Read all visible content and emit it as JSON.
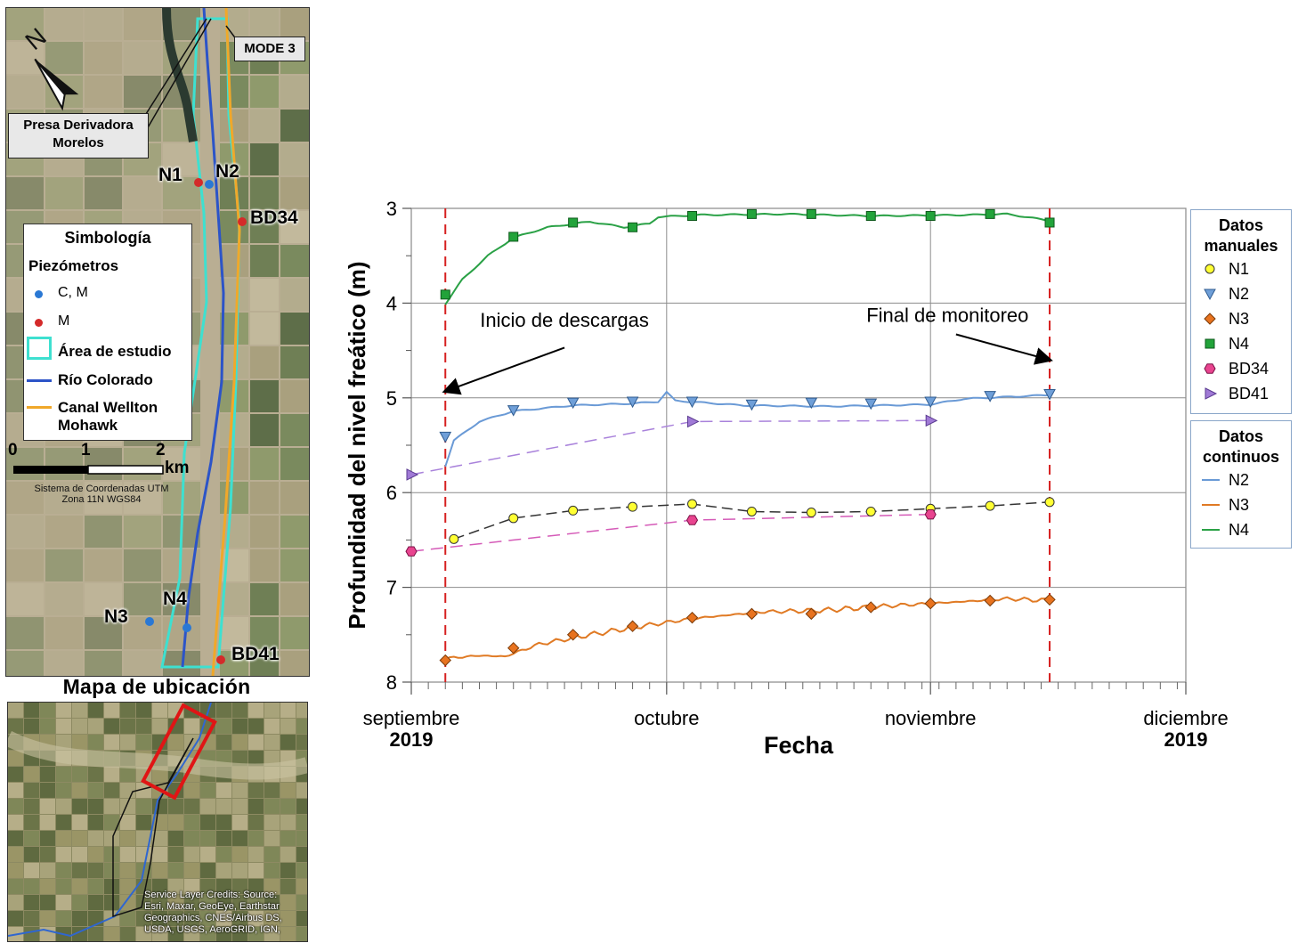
{
  "map": {
    "mode_label": "MODE 3",
    "dam_label": "Presa Derivadora\nMorelos",
    "north": "N",
    "points": [
      {
        "label": "N1",
        "color": "#d42a2a"
      },
      {
        "label": "N2",
        "color": "#2a78d4"
      },
      {
        "label": "BD34",
        "color": "#d42a2a"
      },
      {
        "label": "N3",
        "color": "#2a78d4"
      },
      {
        "label": "N4",
        "color": "#2a78d4"
      },
      {
        "label": "BD41",
        "color": "#d42a2a"
      }
    ],
    "symbology": {
      "title": "Simbología",
      "piezo_title": "Piezómetros",
      "cm": "C, M",
      "m": "M",
      "area": "Área de estudio",
      "river": "Río Colorado",
      "canal": "Canal Wellton\nMohawk"
    },
    "scale": {
      "t0": "0",
      "t1": "1",
      "t2": "2",
      "unit": "km",
      "crs": "Sistema de Coordenadas UTM\nZona 11N WGS84"
    },
    "location_title": "Mapa de ubicación",
    "credits": "Service Layer Credits: Source:\nEsri, Maxar, GeoEye, Earthstar\nGeographics, CNES/Airbus DS,\nUSDA, USGS, AeroGRID, IGN,"
  },
  "chart_data": {
    "type": "line",
    "xlabel": "Fecha",
    "ylabel": "Profundidad del nivel freático (m)",
    "ylim": [
      8,
      3
    ],
    "y_inverted": true,
    "yticks": [
      "3",
      "4",
      "5",
      "6",
      "7",
      "8"
    ],
    "xlim": [
      "2019-09-01",
      "2019-12-01"
    ],
    "xticks": [
      {
        "date": "2019-09-01",
        "label": "septiembre",
        "year": "2019"
      },
      {
        "date": "2019-10-01",
        "label": "octubre",
        "year": ""
      },
      {
        "date": "2019-11-01",
        "label": "noviembre",
        "year": ""
      },
      {
        "date": "2019-12-01",
        "label": "diciembre",
        "year": "2019"
      }
    ],
    "grid": true,
    "vlines": [
      {
        "date": "2019-09-05",
        "color": "#d62020"
      },
      {
        "date": "2019-11-15",
        "color": "#d62020"
      }
    ],
    "annotations": [
      {
        "text": "Inicio de descargas",
        "date": "2019-09-19",
        "y": 4.25,
        "arrow_from": [
          "2019-09-19",
          4.47
        ],
        "arrow_to": [
          "2019-09-05",
          4.93
        ]
      },
      {
        "text": "Final de monitoreo",
        "date": "2019-11-03",
        "y": 4.2,
        "arrow_from": [
          "2019-11-04",
          4.33
        ],
        "arrow_to": [
          "2019-11-15",
          4.6
        ]
      }
    ],
    "manual_series": [
      {
        "name": "N1",
        "marker": "circle",
        "fill": "#ffff33",
        "stroke": "#333333",
        "line": "#333333",
        "dash": "12,6",
        "points": [
          [
            "2019-09-06",
            6.49
          ],
          [
            "2019-09-13",
            6.27
          ],
          [
            "2019-09-20",
            6.19
          ],
          [
            "2019-09-27",
            6.15
          ],
          [
            "2019-10-04",
            6.12
          ],
          [
            "2019-10-11",
            6.2
          ],
          [
            "2019-10-18",
            6.21
          ],
          [
            "2019-10-25",
            6.2
          ],
          [
            "2019-11-01",
            6.17
          ],
          [
            "2019-11-08",
            6.14
          ],
          [
            "2019-11-15",
            6.1
          ]
        ]
      },
      {
        "name": "N2",
        "marker": "tri-down",
        "fill": "#6f9fd8",
        "stroke": "#2f5b8f",
        "points": [
          [
            "2019-09-05",
            5.41
          ],
          [
            "2019-09-13",
            5.13
          ],
          [
            "2019-09-20",
            5.05
          ],
          [
            "2019-09-27",
            5.04
          ],
          [
            "2019-10-04",
            5.04
          ],
          [
            "2019-10-11",
            5.07
          ],
          [
            "2019-10-18",
            5.05
          ],
          [
            "2019-10-25",
            5.06
          ],
          [
            "2019-11-01",
            5.04
          ],
          [
            "2019-11-08",
            4.98
          ],
          [
            "2019-11-15",
            4.96
          ]
        ]
      },
      {
        "name": "N3",
        "marker": "diamond",
        "fill": "#e8731f",
        "stroke": "#7a3a08",
        "points": [
          [
            "2019-09-05",
            7.77
          ],
          [
            "2019-09-13",
            7.64
          ],
          [
            "2019-09-20",
            7.5
          ],
          [
            "2019-09-27",
            7.41
          ],
          [
            "2019-10-04",
            7.32
          ],
          [
            "2019-10-11",
            7.28
          ],
          [
            "2019-10-18",
            7.28
          ],
          [
            "2019-10-25",
            7.21
          ],
          [
            "2019-11-01",
            7.17
          ],
          [
            "2019-11-08",
            7.14
          ],
          [
            "2019-11-15",
            7.13
          ]
        ]
      },
      {
        "name": "N4",
        "marker": "square",
        "fill": "#22a33a",
        "stroke": "#0e5a1c",
        "points": [
          [
            "2019-09-05",
            3.91
          ],
          [
            "2019-09-13",
            3.3
          ],
          [
            "2019-09-20",
            3.15
          ],
          [
            "2019-09-27",
            3.2
          ],
          [
            "2019-10-04",
            3.08
          ],
          [
            "2019-10-11",
            3.06
          ],
          [
            "2019-10-18",
            3.06
          ],
          [
            "2019-10-25",
            3.08
          ],
          [
            "2019-11-01",
            3.08
          ],
          [
            "2019-11-08",
            3.06
          ],
          [
            "2019-11-15",
            3.15
          ]
        ]
      },
      {
        "name": "BD34",
        "marker": "hexagon",
        "fill": "#e8448f",
        "stroke": "#7a1045",
        "line": "#d55bb8",
        "dash": "14,8",
        "points": [
          [
            "2019-09-01",
            6.62
          ],
          [
            "2019-10-04",
            6.29
          ],
          [
            "2019-11-01",
            6.23
          ]
        ]
      },
      {
        "name": "BD41",
        "marker": "tri-right",
        "fill": "#a07ad6",
        "stroke": "#5a3a90",
        "line": "#a982db",
        "dash": "14,8",
        "points": [
          [
            "2019-09-01",
            5.81
          ],
          [
            "2019-10-04",
            5.25
          ],
          [
            "2019-11-01",
            5.24
          ]
        ]
      }
    ],
    "continuous_series": [
      {
        "name": "N2",
        "color": "#6a9ad6",
        "points": [
          [
            "2019-09-05",
            5.72
          ],
          [
            "2019-09-06",
            5.45
          ],
          [
            "2019-09-09",
            5.25
          ],
          [
            "2019-09-13",
            5.14
          ],
          [
            "2019-09-20",
            5.08
          ],
          [
            "2019-09-27",
            5.06
          ],
          [
            "2019-09-30",
            5.04
          ],
          [
            "2019-10-01",
            4.94
          ],
          [
            "2019-10-02",
            5.03
          ],
          [
            "2019-10-10",
            5.08
          ],
          [
            "2019-10-20",
            5.09
          ],
          [
            "2019-11-01",
            5.07
          ],
          [
            "2019-11-05",
            5.01
          ],
          [
            "2019-11-15",
            4.97
          ]
        ]
      },
      {
        "name": "N3",
        "color": "#e07a24",
        "points": [
          [
            "2019-09-05",
            7.75
          ],
          [
            "2019-09-09",
            7.72
          ],
          [
            "2019-09-12",
            7.73
          ],
          [
            "2019-09-16",
            7.6
          ],
          [
            "2019-09-22",
            7.5
          ],
          [
            "2019-09-28",
            7.41
          ],
          [
            "2019-10-04",
            7.33
          ],
          [
            "2019-10-12",
            7.26
          ],
          [
            "2019-10-20",
            7.24
          ],
          [
            "2019-10-28",
            7.19
          ],
          [
            "2019-11-05",
            7.15
          ],
          [
            "2019-11-10",
            7.12
          ],
          [
            "2019-11-15",
            7.14
          ]
        ]
      },
      {
        "name": "N4",
        "color": "#2aa146",
        "points": [
          [
            "2019-09-05",
            4.01
          ],
          [
            "2019-09-07",
            3.75
          ],
          [
            "2019-09-10",
            3.5
          ],
          [
            "2019-09-13",
            3.31
          ],
          [
            "2019-09-17",
            3.2
          ],
          [
            "2019-09-22",
            3.14
          ],
          [
            "2019-09-26",
            3.2
          ],
          [
            "2019-09-29",
            3.16
          ],
          [
            "2019-09-30",
            3.09
          ],
          [
            "2019-10-05",
            3.07
          ],
          [
            "2019-10-15",
            3.06
          ],
          [
            "2019-10-25",
            3.08
          ],
          [
            "2019-11-05",
            3.07
          ],
          [
            "2019-11-10",
            3.06
          ],
          [
            "2019-11-15",
            3.13
          ]
        ]
      }
    ],
    "legend_manual": {
      "title": "Datos\nmanuales",
      "placement": "right"
    },
    "legend_continuous": {
      "title": "Datos\ncontinuos",
      "placement": "right"
    }
  }
}
